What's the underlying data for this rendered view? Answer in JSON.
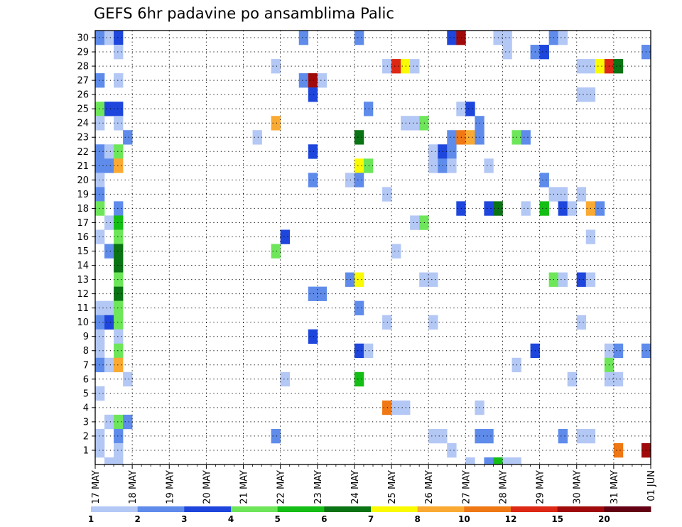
{
  "chart_data": {
    "type": "heatmap",
    "title": "GEFS 6hr padavine po ansamblima Palic",
    "xlabel": "",
    "ylabel": "",
    "x_ticks": [
      "17 MAY",
      "18 MAY",
      "19 MAY",
      "20 MAY",
      "21 MAY",
      "22 MAY",
      "23 MAY",
      "24 MAY",
      "25 MAY",
      "26 MAY",
      "27 MAY",
      "28 MAY",
      "29 MAY",
      "30 MAY",
      "31 MAY",
      "01 JUN"
    ],
    "steps_per_day": 4,
    "n_steps": 60,
    "y_ticks": [
      1,
      2,
      3,
      4,
      5,
      6,
      7,
      8,
      9,
      10,
      11,
      12,
      13,
      14,
      15,
      16,
      17,
      18,
      19,
      20,
      21,
      22,
      23,
      24,
      25,
      26,
      27,
      28,
      29,
      30
    ],
    "ylim": [
      0,
      30
    ],
    "grid": "dotted",
    "colorbar": {
      "levels": [
        "1",
        "2",
        "3",
        "4",
        "5",
        "6",
        "7",
        "8",
        "10",
        "12",
        "15",
        "20"
      ],
      "colors": [
        "#b4c8f5",
        "#5f8ceb",
        "#1e46dc",
        "#6ee65a",
        "#14be14",
        "#0a7314",
        "#fafa00",
        "#faaa32",
        "#f07814",
        "#dc2814",
        "#a00a0a",
        "#640014"
      ]
    },
    "cells": [
      [
        0,
        30,
        1
      ],
      [
        1,
        30,
        0
      ],
      [
        2,
        30,
        2
      ],
      [
        22,
        30,
        1
      ],
      [
        28,
        30,
        1
      ],
      [
        38,
        30,
        2
      ],
      [
        39,
        30,
        10
      ],
      [
        43,
        30,
        0
      ],
      [
        44,
        30,
        0
      ],
      [
        49,
        30,
        1
      ],
      [
        50,
        30,
        0
      ],
      [
        2,
        29,
        0
      ],
      [
        44,
        29,
        0
      ],
      [
        47,
        29,
        1
      ],
      [
        48,
        29,
        2
      ],
      [
        59,
        29,
        1
      ],
      [
        60,
        29,
        11
      ],
      [
        19,
        28,
        0
      ],
      [
        31,
        28,
        0
      ],
      [
        32,
        28,
        9
      ],
      [
        33,
        28,
        6
      ],
      [
        34,
        28,
        0
      ],
      [
        52,
        28,
        0
      ],
      [
        53,
        28,
        0
      ],
      [
        54,
        28,
        6
      ],
      [
        55,
        28,
        9
      ],
      [
        56,
        28,
        5
      ],
      [
        0,
        27,
        1
      ],
      [
        2,
        27,
        0
      ],
      [
        22,
        27,
        1
      ],
      [
        23,
        27,
        10
      ],
      [
        24,
        27,
        0
      ],
      [
        52,
        26,
        0
      ],
      [
        53,
        26,
        0
      ],
      [
        23,
        26,
        2
      ],
      [
        0,
        25,
        3
      ],
      [
        1,
        25,
        2
      ],
      [
        2,
        25,
        2
      ],
      [
        29,
        25,
        1
      ],
      [
        39,
        25,
        0
      ],
      [
        40,
        25,
        2
      ],
      [
        0,
        24,
        0
      ],
      [
        2,
        24,
        0
      ],
      [
        19,
        24,
        7
      ],
      [
        33,
        24,
        0
      ],
      [
        34,
        24,
        0
      ],
      [
        35,
        24,
        3
      ],
      [
        41,
        24,
        1
      ],
      [
        3,
        23,
        1
      ],
      [
        17,
        23,
        0
      ],
      [
        28,
        23,
        5
      ],
      [
        38,
        23,
        1
      ],
      [
        39,
        23,
        8
      ],
      [
        40,
        23,
        7
      ],
      [
        41,
        23,
        1
      ],
      [
        45,
        23,
        3
      ],
      [
        46,
        23,
        1
      ],
      [
        0,
        22,
        1
      ],
      [
        1,
        22,
        0
      ],
      [
        2,
        22,
        3
      ],
      [
        23,
        22,
        2
      ],
      [
        36,
        22,
        0
      ],
      [
        37,
        22,
        2
      ],
      [
        38,
        22,
        1
      ],
      [
        0,
        21,
        1
      ],
      [
        1,
        21,
        1
      ],
      [
        2,
        21,
        7
      ],
      [
        28,
        21,
        6
      ],
      [
        29,
        21,
        3
      ],
      [
        36,
        21,
        0
      ],
      [
        37,
        21,
        1
      ],
      [
        38,
        21,
        0
      ],
      [
        42,
        21,
        0
      ],
      [
        0,
        20,
        0
      ],
      [
        23,
        20,
        1
      ],
      [
        27,
        20,
        0
      ],
      [
        28,
        20,
        1
      ],
      [
        48,
        20,
        1
      ],
      [
        0,
        19,
        1
      ],
      [
        31,
        19,
        0
      ],
      [
        49,
        19,
        0
      ],
      [
        50,
        19,
        0
      ],
      [
        52,
        19,
        0
      ],
      [
        0,
        18,
        3
      ],
      [
        2,
        18,
        1
      ],
      [
        39,
        18,
        2
      ],
      [
        42,
        18,
        2
      ],
      [
        43,
        18,
        5
      ],
      [
        46,
        18,
        0
      ],
      [
        48,
        18,
        4
      ],
      [
        50,
        18,
        2
      ],
      [
        51,
        18,
        0
      ],
      [
        53,
        18,
        7
      ],
      [
        54,
        18,
        1
      ],
      [
        1,
        17,
        0
      ],
      [
        2,
        17,
        4
      ],
      [
        34,
        17,
        0
      ],
      [
        35,
        17,
        3
      ],
      [
        0,
        16,
        0
      ],
      [
        2,
        16,
        3
      ],
      [
        20,
        16,
        2
      ],
      [
        53,
        16,
        0
      ],
      [
        1,
        15,
        1
      ],
      [
        2,
        15,
        5
      ],
      [
        19,
        15,
        3
      ],
      [
        32,
        15,
        0
      ],
      [
        2,
        14,
        5
      ],
      [
        2,
        13,
        3
      ],
      [
        27,
        13,
        1
      ],
      [
        28,
        13,
        6
      ],
      [
        35,
        13,
        0
      ],
      [
        36,
        13,
        0
      ],
      [
        49,
        13,
        3
      ],
      [
        50,
        13,
        0
      ],
      [
        52,
        13,
        2
      ],
      [
        53,
        13,
        0
      ],
      [
        2,
        12,
        5
      ],
      [
        23,
        12,
        1
      ],
      [
        24,
        12,
        1
      ],
      [
        0,
        11,
        0
      ],
      [
        1,
        11,
        0
      ],
      [
        2,
        11,
        3
      ],
      [
        28,
        11,
        1
      ],
      [
        0,
        10,
        1
      ],
      [
        1,
        10,
        2
      ],
      [
        2,
        10,
        3
      ],
      [
        31,
        10,
        0
      ],
      [
        36,
        10,
        0
      ],
      [
        52,
        10,
        0
      ],
      [
        0,
        9,
        0
      ],
      [
        2,
        9,
        0
      ],
      [
        23,
        9,
        2
      ],
      [
        0,
        8,
        0
      ],
      [
        2,
        8,
        3
      ],
      [
        28,
        8,
        2
      ],
      [
        29,
        8,
        0
      ],
      [
        47,
        8,
        2
      ],
      [
        55,
        8,
        0
      ],
      [
        56,
        8,
        1
      ],
      [
        59,
        8,
        1
      ],
      [
        60,
        8,
        2
      ],
      [
        0,
        7,
        1
      ],
      [
        1,
        7,
        0
      ],
      [
        2,
        7,
        7
      ],
      [
        45,
        7,
        0
      ],
      [
        55,
        7,
        3
      ],
      [
        3,
        6,
        0
      ],
      [
        20,
        6,
        0
      ],
      [
        28,
        6,
        4
      ],
      [
        51,
        6,
        0
      ],
      [
        55,
        6,
        0
      ],
      [
        56,
        6,
        0
      ],
      [
        0,
        5,
        0
      ],
      [
        31,
        4,
        8
      ],
      [
        32,
        4,
        0
      ],
      [
        33,
        4,
        0
      ],
      [
        41,
        4,
        0
      ],
      [
        1,
        3,
        0
      ],
      [
        2,
        3,
        3
      ],
      [
        3,
        3,
        1
      ],
      [
        0,
        2,
        0
      ],
      [
        2,
        2,
        1
      ],
      [
        19,
        2,
        1
      ],
      [
        36,
        2,
        0
      ],
      [
        37,
        2,
        0
      ],
      [
        41,
        2,
        1
      ],
      [
        42,
        2,
        1
      ],
      [
        50,
        2,
        1
      ],
      [
        52,
        2,
        0
      ],
      [
        53,
        2,
        0
      ],
      [
        0,
        1,
        0
      ],
      [
        2,
        1,
        0
      ],
      [
        38,
        1,
        0
      ],
      [
        56,
        1,
        8
      ],
      [
        59,
        1,
        10
      ],
      [
        60,
        1,
        10
      ],
      [
        1,
        0,
        0
      ],
      [
        2,
        0,
        0
      ],
      [
        40,
        0,
        0
      ],
      [
        42,
        0,
        1
      ],
      [
        43,
        0,
        4
      ],
      [
        44,
        0,
        0
      ],
      [
        45,
        0,
        0
      ]
    ]
  }
}
